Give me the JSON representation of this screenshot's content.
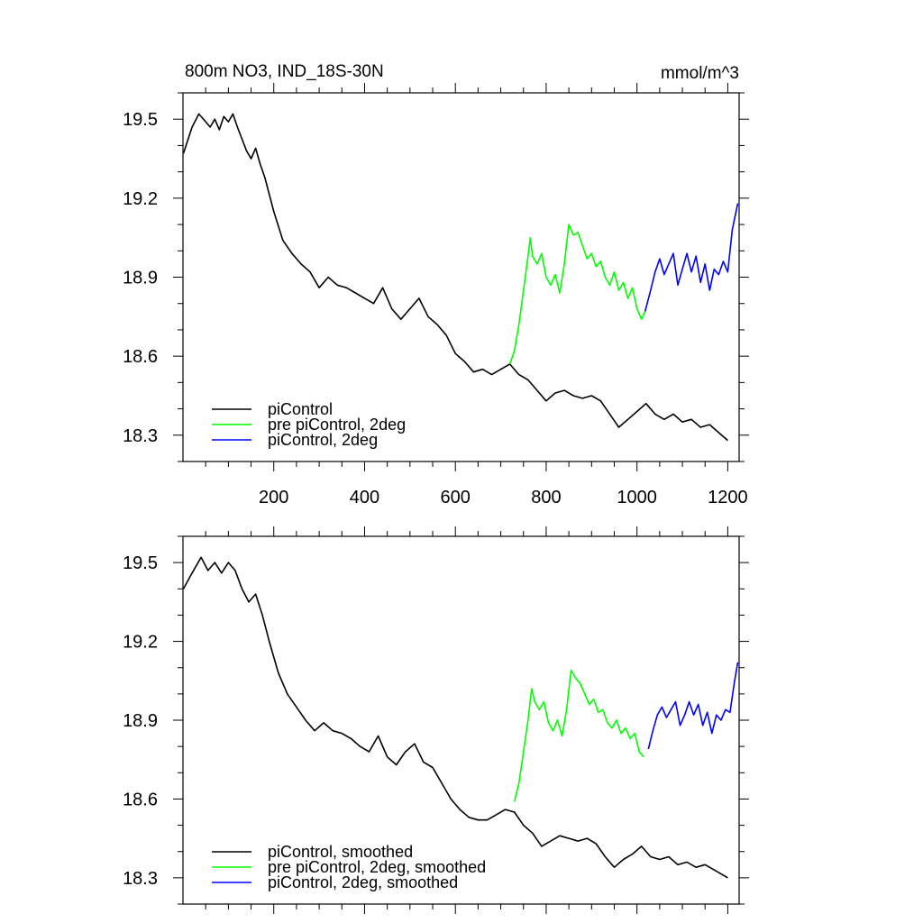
{
  "chart_data": [
    {
      "type": "line",
      "title_left": "800m NO3, IND_18S-30N",
      "title_right": "mmol/m^3",
      "xlim": [
        0,
        1225
      ],
      "ylim": [
        18.2,
        19.6
      ],
      "xticks": [
        200,
        400,
        600,
        800,
        1000,
        1200
      ],
      "yticks": [
        18.3,
        18.6,
        18.9,
        19.2,
        19.5
      ],
      "ytick_labels": [
        "18.3",
        "18.6",
        "18.9",
        "19.2",
        "19.5"
      ],
      "xtick_labels": [
        "200",
        "400",
        "600",
        "800",
        "1000",
        "1200"
      ],
      "show_xtick_labels": true,
      "legend_position": "bottom-left",
      "series": [
        {
          "name": "piControl",
          "color": "#000000",
          "x": [
            1,
            20,
            35,
            50,
            60,
            70,
            80,
            90,
            100,
            110,
            120,
            140,
            150,
            160,
            170,
            180,
            200,
            220,
            240,
            260,
            280,
            300,
            320,
            340,
            360,
            380,
            400,
            420,
            440,
            460,
            480,
            500,
            520,
            540,
            560,
            580,
            600,
            620,
            640,
            660,
            680,
            700,
            720,
            740,
            760,
            780,
            800,
            820,
            840,
            860,
            880,
            900,
            920,
            940,
            960,
            980,
            1000,
            1020,
            1040,
            1060,
            1080,
            1100,
            1120,
            1140,
            1160,
            1180,
            1200
          ],
          "y": [
            19.37,
            19.47,
            19.52,
            19.49,
            19.47,
            19.5,
            19.46,
            19.51,
            19.49,
            19.52,
            19.47,
            19.38,
            19.35,
            19.39,
            19.33,
            19.28,
            19.15,
            19.04,
            18.99,
            18.95,
            18.92,
            18.86,
            18.9,
            18.87,
            18.86,
            18.84,
            18.82,
            18.8,
            18.86,
            18.78,
            18.74,
            18.78,
            18.82,
            18.75,
            18.72,
            18.68,
            18.61,
            18.58,
            18.54,
            18.55,
            18.53,
            18.55,
            18.57,
            18.53,
            18.51,
            18.47,
            18.43,
            18.46,
            18.47,
            18.45,
            18.44,
            18.45,
            18.43,
            18.38,
            18.33,
            18.36,
            18.39,
            18.42,
            18.38,
            18.36,
            18.38,
            18.35,
            18.36,
            18.33,
            18.34,
            18.31,
            18.28
          ]
        },
        {
          "name": "pre piControl, 2deg",
          "color": "#00ff00",
          "x": [
            720,
            730,
            740,
            750,
            760,
            765,
            770,
            780,
            790,
            800,
            810,
            820,
            830,
            840,
            850,
            860,
            870,
            880,
            890,
            900,
            910,
            920,
            930,
            940,
            950,
            960,
            970,
            980,
            990,
            1000,
            1010,
            1018
          ],
          "y": [
            18.57,
            18.62,
            18.72,
            18.85,
            18.98,
            19.05,
            18.98,
            18.95,
            18.99,
            18.9,
            18.87,
            18.91,
            18.84,
            18.95,
            19.1,
            19.06,
            19.07,
            19.02,
            18.97,
            18.99,
            18.94,
            18.96,
            18.9,
            18.87,
            18.92,
            18.85,
            18.88,
            18.82,
            18.86,
            18.78,
            18.74,
            18.77
          ]
        },
        {
          "name": "piControl, 2deg",
          "color": "#0000ff",
          "x": [
            1018,
            1030,
            1040,
            1050,
            1060,
            1070,
            1080,
            1090,
            1100,
            1110,
            1120,
            1130,
            1140,
            1150,
            1160,
            1170,
            1180,
            1190,
            1200,
            1210,
            1222
          ],
          "y": [
            18.77,
            18.85,
            18.92,
            18.97,
            18.91,
            18.95,
            18.99,
            18.87,
            18.93,
            18.99,
            18.92,
            18.98,
            18.88,
            18.95,
            18.85,
            18.93,
            18.91,
            18.96,
            18.92,
            19.08,
            19.18
          ]
        }
      ]
    },
    {
      "type": "line",
      "title_left": "",
      "title_right": "",
      "xlim": [
        0,
        1225
      ],
      "ylim": [
        18.2,
        19.6
      ],
      "xticks": [
        200,
        400,
        600,
        800,
        1000,
        1200
      ],
      "yticks": [
        18.3,
        18.6,
        18.9,
        19.2,
        19.5
      ],
      "ytick_labels": [
        "18.3",
        "18.6",
        "18.9",
        "19.2",
        "19.5"
      ],
      "xtick_labels": [],
      "show_xtick_labels": false,
      "legend_position": "bottom-left",
      "series": [
        {
          "name": "piControl, smoothed",
          "color": "#000000",
          "x": [
            1,
            20,
            40,
            55,
            70,
            85,
            100,
            115,
            130,
            145,
            160,
            175,
            190,
            210,
            230,
            250,
            270,
            290,
            310,
            330,
            350,
            370,
            390,
            410,
            430,
            450,
            470,
            490,
            510,
            530,
            550,
            570,
            590,
            610,
            630,
            650,
            670,
            690,
            710,
            730,
            750,
            770,
            790,
            810,
            830,
            850,
            870,
            890,
            910,
            930,
            950,
            970,
            990,
            1010,
            1030,
            1050,
            1070,
            1090,
            1110,
            1130,
            1150,
            1170,
            1190,
            1200
          ],
          "y": [
            19.4,
            19.46,
            19.52,
            19.47,
            19.5,
            19.46,
            19.5,
            19.47,
            19.4,
            19.35,
            19.38,
            19.3,
            19.2,
            19.08,
            19.0,
            18.95,
            18.9,
            18.86,
            18.89,
            18.86,
            18.85,
            18.83,
            18.8,
            18.78,
            18.84,
            18.76,
            18.73,
            18.78,
            18.81,
            18.74,
            18.72,
            18.66,
            18.6,
            18.56,
            18.53,
            18.52,
            18.52,
            18.54,
            18.56,
            18.55,
            18.5,
            18.47,
            18.42,
            18.44,
            18.46,
            18.45,
            18.44,
            18.45,
            18.43,
            18.38,
            18.34,
            18.37,
            18.39,
            18.42,
            18.38,
            18.37,
            18.38,
            18.35,
            18.36,
            18.34,
            18.35,
            18.33,
            18.31,
            18.3
          ]
        },
        {
          "name": "pre piControl, 2deg, smoothed",
          "color": "#00ff00",
          "x": [
            730,
            740,
            750,
            760,
            768,
            775,
            785,
            795,
            805,
            815,
            825,
            835,
            845,
            855,
            865,
            875,
            885,
            895,
            905,
            915,
            925,
            935,
            945,
            955,
            965,
            975,
            985,
            995,
            1005,
            1015
          ],
          "y": [
            18.59,
            18.66,
            18.78,
            18.9,
            19.02,
            18.97,
            18.94,
            18.97,
            18.89,
            18.86,
            18.9,
            18.84,
            18.94,
            19.09,
            19.06,
            19.04,
            19.0,
            18.96,
            18.98,
            18.93,
            18.94,
            18.89,
            18.87,
            18.9,
            18.85,
            18.87,
            18.83,
            18.85,
            18.78,
            18.76
          ]
        },
        {
          "name": "piControl, 2deg, smoothed",
          "color": "#0000ff",
          "x": [
            1025,
            1035,
            1045,
            1055,
            1065,
            1075,
            1085,
            1095,
            1105,
            1115,
            1125,
            1135,
            1145,
            1155,
            1165,
            1175,
            1185,
            1195,
            1205,
            1215,
            1222
          ],
          "y": [
            18.79,
            18.86,
            18.92,
            18.95,
            18.91,
            18.94,
            18.97,
            18.88,
            18.92,
            18.97,
            18.92,
            18.96,
            18.88,
            18.93,
            18.85,
            18.92,
            18.9,
            18.94,
            18.93,
            19.05,
            19.12
          ]
        }
      ]
    }
  ]
}
